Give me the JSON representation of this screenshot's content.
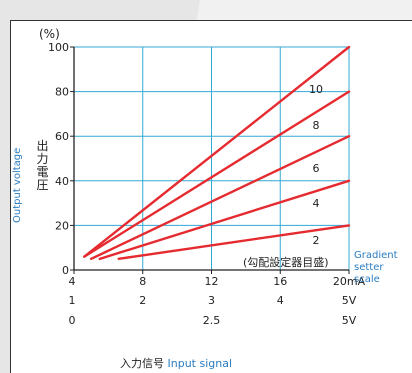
{
  "chart_data": {
    "type": "line",
    "unit_label": "(%)",
    "ylabel_jp": "出力電圧",
    "ylabel_en": "Output voltage",
    "xlabel_jp": "入力信号",
    "xlabel_en": "Input signal",
    "gradient_label_jp": "(勾配設定器目盛)",
    "gradient_label_en_line1": "Gradient",
    "gradient_label_en_line2": "setter scale",
    "y_ticks": [
      "0",
      "20",
      "40",
      "60",
      "80",
      "100"
    ],
    "x_tick_rows": [
      [
        "4",
        "8",
        "12",
        "16",
        "20mA"
      ],
      [
        "1",
        "2",
        "3",
        "4",
        "5V"
      ],
      [
        "0",
        "",
        "2.5",
        "",
        "5V"
      ]
    ],
    "xlim": [
      4,
      20
    ],
    "ylim": [
      0,
      100
    ],
    "grid": true,
    "line_color": "#e52b30",
    "grid_color": "#33a9d6",
    "series": [
      {
        "name": "10",
        "points": [
          [
            4.6,
            6
          ],
          [
            20,
            100
          ]
        ]
      },
      {
        "name": "8",
        "points": [
          [
            4.6,
            6
          ],
          [
            20,
            80
          ]
        ]
      },
      {
        "name": "6",
        "points": [
          [
            5.0,
            5
          ],
          [
            20,
            60
          ]
        ]
      },
      {
        "name": "4",
        "points": [
          [
            5.5,
            5
          ],
          [
            20,
            40
          ]
        ]
      },
      {
        "name": "2",
        "points": [
          [
            6.6,
            5
          ],
          [
            20,
            20
          ]
        ]
      }
    ]
  }
}
